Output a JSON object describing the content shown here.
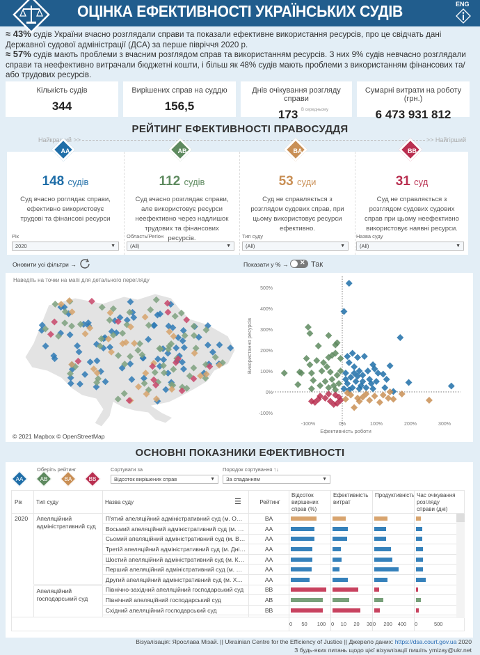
{
  "header": {
    "title": "ОЦІНКА ЕФЕКТИВНОСТІ УКРАЇНСЬКИХ СУДІВ",
    "lang_button": "ENG",
    "info_icon": "info-icon",
    "logo_icon": "scales-of-justice-icon"
  },
  "intro": {
    "p1_pct": "≈ 43%",
    "p1_text": " судів України вчасно розглядали справи та показали ефективне використання ресурсів, про це свідчать дані Державної судової адміністрації (ДСА) за перше півріччя 2020 р.",
    "p2_pct": "≈ 57%",
    "p2_text": " судів мають проблеми з вчасним розглядом справ та використанням ресурсів. З них 9% судів невчасно розглядали справи та неефективно витрачали бюджетні кошти, і більш як 48% судів мають проблеми з використанням фінансових та/або трудових ресурсів."
  },
  "kpis": [
    {
      "label": "Кількість судів",
      "value": "344",
      "note": ""
    },
    {
      "label": "Вирішених справ на суддю",
      "value": "156,5",
      "note": ""
    },
    {
      "label": "Днів очікування розгляду справи",
      "value": "173",
      "note": "В середньому"
    },
    {
      "label": "Сумарні витрати на роботу (грн.)",
      "value": "6 473 931 812",
      "note": ""
    }
  ],
  "rating": {
    "title": "РЕЙТИНГ ЕФЕКТИВНОСТІ ПРАВОСУДДЯ",
    "best": "Найкращий >>",
    "worst": ">> Найгірший",
    "cards": [
      {
        "code": "AA",
        "count": "148",
        "unit": "судів",
        "color": "#1f6ea8",
        "desc": "Суд вчасно роглядає справи, ефективно використовує трудові та фінансові ресурси"
      },
      {
        "code": "AB",
        "count": "112",
        "unit": "судів",
        "color": "#5e8a5f",
        "desc": "Суд вчасно розглядає справи, але використовує ресурси неефективно через надлишок трудових та фінансових ресурсів."
      },
      {
        "code": "BA",
        "count": "53",
        "unit": "суди",
        "color": "#c98f55",
        "desc": "Суд не справляється з розглядом судових справ, при цьому використовує ресурси ефективно."
      },
      {
        "code": "BB",
        "count": "31",
        "unit": "суд",
        "color": "#b92f50",
        "desc": "Суд не справляється з розглядом судових судових справ при цьому неефективно використовує наявні ресурси."
      }
    ]
  },
  "filters": [
    {
      "label": "Рік",
      "value": "2020"
    },
    {
      "label": "Область/Регіон",
      "value": "(All)"
    },
    {
      "label": "Тип суду",
      "value": "(All)"
    },
    {
      "label": "Назва суду",
      "value": "(All)"
    }
  ],
  "controls": {
    "reset_label": "Оновити усі фільтри →",
    "percent_label": "Показати у % →",
    "toggle_label": "Так",
    "toggle_on": false
  },
  "map": {
    "hint": "Наведіть на точки на мапі для детального перегляду",
    "attribution": "© 2021 Mapbox  © OpenStreetMap"
  },
  "chart_data": {
    "type": "scatter",
    "xlabel": "Ефективність роботи",
    "ylabel": "Використання ресурсів",
    "xlim": [
      -180,
      350
    ],
    "ylim": [
      -120,
      560
    ],
    "xticks": [
      "-100%",
      "0%",
      "100%",
      "200%",
      "300%"
    ],
    "xtick_values": [
      -100,
      0,
      100,
      200,
      300
    ],
    "yticks": [
      "-100%",
      "0%",
      "100%",
      "200%",
      "300%",
      "400%",
      "500%"
    ],
    "ytick_values": [
      -100,
      0,
      100,
      200,
      300,
      400,
      500
    ],
    "colors": {
      "AA": "#1f6ea8",
      "AB": "#5e8a5f",
      "BA": "#c98f55",
      "BB": "#b92f50"
    },
    "points": [
      [
        20,
        520,
        "AA"
      ],
      [
        5,
        385,
        "AA"
      ],
      [
        170,
        260,
        "AA"
      ],
      [
        320,
        28,
        "AA"
      ],
      [
        195,
        45,
        "AA"
      ],
      [
        150,
        2,
        "AA"
      ],
      [
        140,
        125,
        "AA"
      ],
      [
        105,
        90,
        "AA"
      ],
      [
        120,
        85,
        "AA"
      ],
      [
        90,
        130,
        "AA"
      ],
      [
        65,
        170,
        "AA"
      ],
      [
        45,
        165,
        "AA"
      ],
      [
        30,
        185,
        "AA"
      ],
      [
        15,
        170,
        "AA"
      ],
      [
        20,
        140,
        "AA"
      ],
      [
        35,
        120,
        "AA"
      ],
      [
        50,
        100,
        "AA"
      ],
      [
        60,
        80,
        "AA"
      ],
      [
        80,
        60,
        "AA"
      ],
      [
        100,
        50,
        "AA"
      ],
      [
        130,
        60,
        "AA"
      ],
      [
        125,
        20,
        "AA"
      ],
      [
        10,
        90,
        "AA"
      ],
      [
        25,
        70,
        "AA"
      ],
      [
        40,
        50,
        "AA"
      ],
      [
        55,
        30,
        "AA"
      ],
      [
        70,
        20,
        "AA"
      ],
      [
        85,
        40,
        "AA"
      ],
      [
        15,
        40,
        "AA"
      ],
      [
        30,
        20,
        "AA"
      ],
      [
        5,
        15,
        "AA"
      ],
      [
        45,
        75,
        "AA"
      ],
      [
        75,
        100,
        "AA"
      ],
      [
        95,
        110,
        "AA"
      ],
      [
        35,
        90,
        "AA"
      ],
      [
        60,
        50,
        "AA"
      ],
      [
        20,
        10,
        "AA"
      ],
      [
        10,
        60,
        "AA"
      ],
      [
        50,
        15,
        "AA"
      ],
      [
        90,
        15,
        "AA"
      ],
      [
        -100,
        310,
        "AB"
      ],
      [
        -95,
        280,
        "AB"
      ],
      [
        -40,
        270,
        "AB"
      ],
      [
        -70,
        220,
        "AB"
      ],
      [
        -15,
        235,
        "AB"
      ],
      [
        -20,
        225,
        "AB"
      ],
      [
        -105,
        160,
        "AB"
      ],
      [
        -95,
        130,
        "AB"
      ],
      [
        -75,
        150,
        "AB"
      ],
      [
        -55,
        140,
        "AB"
      ],
      [
        -40,
        165,
        "AB"
      ],
      [
        -30,
        175,
        "AB"
      ],
      [
        -20,
        185,
        "AB"
      ],
      [
        -5,
        160,
        "AB"
      ],
      [
        -170,
        90,
        "AB"
      ],
      [
        -125,
        95,
        "AB"
      ],
      [
        -120,
        90,
        "AB"
      ],
      [
        -90,
        90,
        "AB"
      ],
      [
        -60,
        100,
        "AB"
      ],
      [
        -35,
        95,
        "AB"
      ],
      [
        -130,
        35,
        "AB"
      ],
      [
        -90,
        15,
        "AB"
      ],
      [
        -85,
        55,
        "AB"
      ],
      [
        -50,
        50,
        "AB"
      ],
      [
        -30,
        60,
        "AB"
      ],
      [
        -10,
        40,
        "AB"
      ],
      [
        -25,
        30,
        "AB"
      ],
      [
        -15,
        80,
        "AB"
      ],
      [
        -5,
        100,
        "AB"
      ],
      [
        -45,
        120,
        "AB"
      ],
      [
        -65,
        30,
        "AB"
      ],
      [
        -20,
        10,
        "AB"
      ],
      [
        -40,
        20,
        "AB"
      ],
      [
        -90,
        -45,
        "BB"
      ],
      [
        -80,
        -50,
        "BB"
      ],
      [
        -65,
        -20,
        "BB"
      ],
      [
        -50,
        -30,
        "BB"
      ],
      [
        -35,
        -45,
        "BB"
      ],
      [
        -25,
        -60,
        "BB"
      ],
      [
        -15,
        -55,
        "BB"
      ],
      [
        -5,
        -40,
        "BB"
      ],
      [
        -40,
        -10,
        "BB"
      ],
      [
        -20,
        -15,
        "BB"
      ],
      [
        -70,
        -35,
        "BB"
      ],
      [
        -10,
        -25,
        "BB"
      ],
      [
        35,
        -75,
        "BA"
      ],
      [
        255,
        -40,
        "BA"
      ],
      [
        175,
        -10,
        "BA"
      ],
      [
        150,
        -35,
        "BA"
      ],
      [
        135,
        -30,
        "BA"
      ],
      [
        110,
        -50,
        "BA"
      ],
      [
        95,
        -20,
        "BA"
      ],
      [
        80,
        -40,
        "BA"
      ],
      [
        60,
        -25,
        "BA"
      ],
      [
        45,
        -30,
        "BA"
      ],
      [
        25,
        -15,
        "BA"
      ],
      [
        10,
        -35,
        "BA"
      ],
      [
        70,
        -10,
        "BA"
      ],
      [
        120,
        -15,
        "BA"
      ],
      [
        140,
        0,
        "BA"
      ],
      [
        15,
        -5,
        "BA"
      ],
      [
        50,
        -45,
        "BA"
      ]
    ]
  },
  "indicators": {
    "title": "ОСНОВНІ ПОКАЗНИКИ ЕФЕКТИВНОСТІ",
    "choose_rating_label": "Оберіть рейтинг",
    "sort_by_label": "Сортувати за",
    "sort_by_value": "Відсоток вирішених справ",
    "sort_order_label": "Порядок сортування ↑↓",
    "sort_order_value": "За спаданням",
    "columns": [
      "Рік",
      "Тип суду",
      "Назва суду",
      "Рейтинг",
      "Відсоток вирішених справ (%)",
      "Ефективність витрат",
      "Продуктивність",
      "Час очікування розгляду справи (дні)"
    ],
    "axes": [
      [
        "0",
        "50",
        "100"
      ],
      [
        "0",
        "10",
        "20",
        "30"
      ],
      [
        "0",
        "200",
        "400"
      ],
      [
        "0",
        "500"
      ]
    ],
    "axis_max": [
      125,
      30,
      550,
      850
    ],
    "bar_colors": {
      "AA": "#3581bb",
      "AB": "#78a07a",
      "BA": "#d8a46e",
      "BB": "#c8425f"
    },
    "year": "2020",
    "groups": [
      {
        "type": "Апеляційний адміністративний суд",
        "rows": [
          {
            "name": "П'ятий апеляційний адміністративний суд (м. Одеса)",
            "rating": "BA",
            "values": [
              82,
              10,
              181,
              106
            ]
          },
          {
            "name": "Восьмий апеляційний адміністративний суд (м. Львів)",
            "rating": "AA",
            "values": [
              76,
              11.5,
              167,
              135
            ]
          },
          {
            "name": "Сьомий апеляційний адміністративний суд (м. Вінниця)",
            "rating": "AA",
            "values": [
              75,
              11,
              167,
              135
            ]
          },
          {
            "name": "Третій апеляційний адміністративний суд (м. Дніпро)",
            "rating": "AA",
            "values": [
              70,
              6.5,
              238,
              147
            ]
          },
          {
            "name": "Шостий апеляційний адміністративний суд (м. Київ)",
            "rating": "AA",
            "values": [
              70,
              7,
              248,
              147
            ]
          },
          {
            "name": "Перший апеляційний адміністративний суд (м. Дніпро)",
            "rating": "AA",
            "values": [
              66,
              5.5,
              338,
              147
            ]
          },
          {
            "name": "Другий апеляційний адміністративний суд (м. Харків)",
            "rating": "AA",
            "values": [
              61,
              11.7,
              181,
              206
            ]
          }
        ]
      },
      {
        "type": "Апеляційний господарський суд",
        "rows": [
          {
            "name": "Північно-західний апеляційний господарський суд",
            "rating": "BB",
            "values": [
              113,
              19.7,
              71,
              41
            ]
          },
          {
            "name": "Північний апеляційний господарський суд",
            "rating": "AB",
            "values": [
              102,
              12.7,
              124,
              106
            ]
          },
          {
            "name": "Східний апеляційний господарський суд",
            "rating": "BB",
            "values": [
              102,
              21.5,
              81,
              59
            ]
          },
          {
            "name": "Південно-західний апеляційний господарський суд",
            "rating": "BB",
            "values": [
              98,
              19.5,
              105,
              94
            ]
          }
        ]
      }
    ]
  },
  "footer": {
    "credit": "Візуалізація: Ярослава Мізай. || Ukrainian Centre for the Efficiency of Justice  || Джерело даних: ",
    "link": "https://dsa.court.gov.ua",
    "year": " 2020",
    "contact": "З будь-яких питань щодо цієї візуалізації пишіть ymizay@ukr.net"
  }
}
